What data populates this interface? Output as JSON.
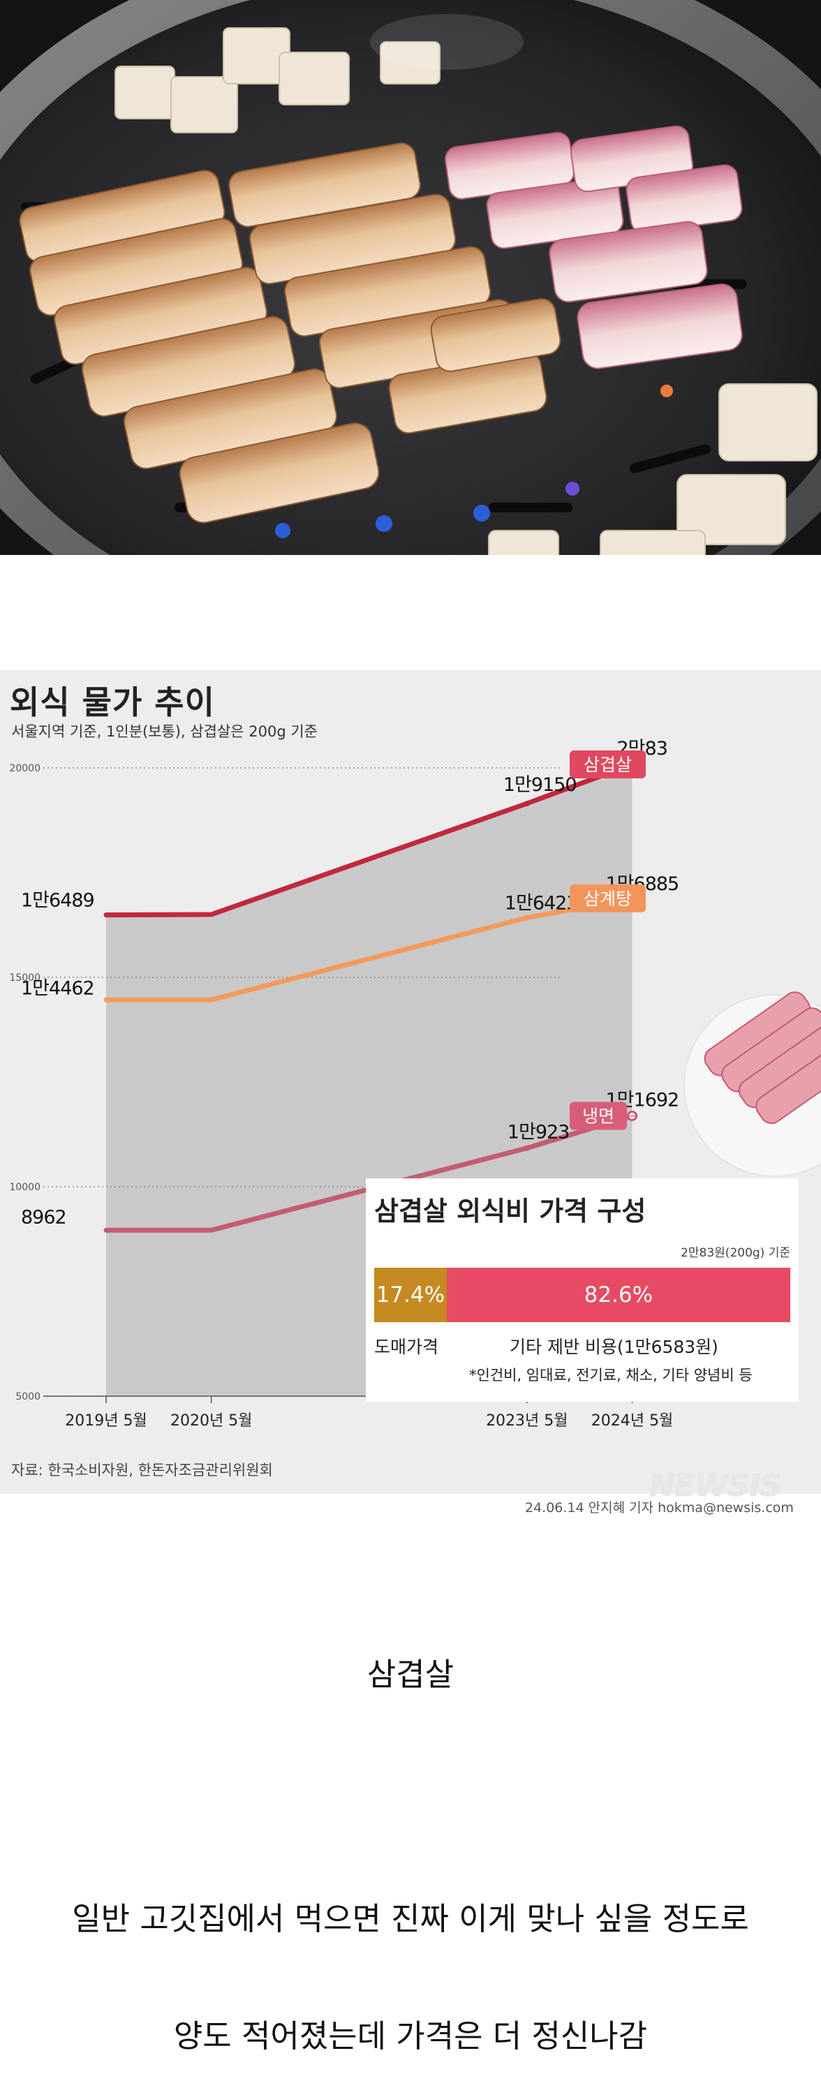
{
  "infographic": {
    "title": "외식 물가 추이",
    "subtitle": "서울지역 기준, 1인분(보통), 삼겹살은 200g 기준",
    "source": "자료: 한국소비자원, 한돈자조금관리위원회",
    "credit": "24.06.14 안지혜 기자 hokma@newsis.com",
    "watermark": "NEWSIS"
  },
  "chart_data": [
    {
      "type": "line",
      "categories": [
        "2019년 5월",
        "2020년 5월",
        "2023년 5월",
        "2024년 5월"
      ],
      "x_year": [
        2019,
        2020,
        2023,
        2024
      ],
      "ylim": [
        5000,
        21000
      ],
      "yticks": [
        "20000",
        "15000",
        "10000",
        "5000"
      ],
      "grid": "dotted horizontal",
      "series": [
        {
          "name": "삼겹살",
          "color": "#c2273e",
          "values": [
            16489,
            16500,
            19150,
            20083
          ],
          "labels": [
            "1만6489",
            "",
            "1만9150",
            "2만83"
          ]
        },
        {
          "name": "삼계탕",
          "color": "#f29a5a",
          "values": [
            14462,
            14462,
            16423,
            16885
          ],
          "labels": [
            "1만4462",
            "",
            "1만6423",
            "1만6885"
          ]
        },
        {
          "name": "냉면",
          "color": "#c35c72",
          "values": [
            8962,
            8962,
            10923,
            11692
          ],
          "labels": [
            "8962",
            "",
            "1만923",
            "1만1692"
          ]
        }
      ]
    },
    {
      "type": "bar",
      "title": "삼겹살 외식비 가격 구성",
      "basis": "2만83원(200g) 기준",
      "segments": [
        {
          "label": "도매가격",
          "value": 17.4,
          "text": "17.4%",
          "color": "#c58a22"
        },
        {
          "label": "기타 제반 비용(1만6583원)",
          "value": 82.6,
          "text": "82.6%",
          "color": "#e64b63"
        }
      ],
      "note": "*인건비, 임대료, 전기료, 채소, 기타 양념비 등"
    }
  ],
  "text": {
    "caption1": "삼겹살",
    "caption2": "일반 고깃집에서 먹으면 진짜 이게 맞나 싶을 정도로",
    "caption3": "양도 적어졌는데 가격은 더 정신나감"
  }
}
